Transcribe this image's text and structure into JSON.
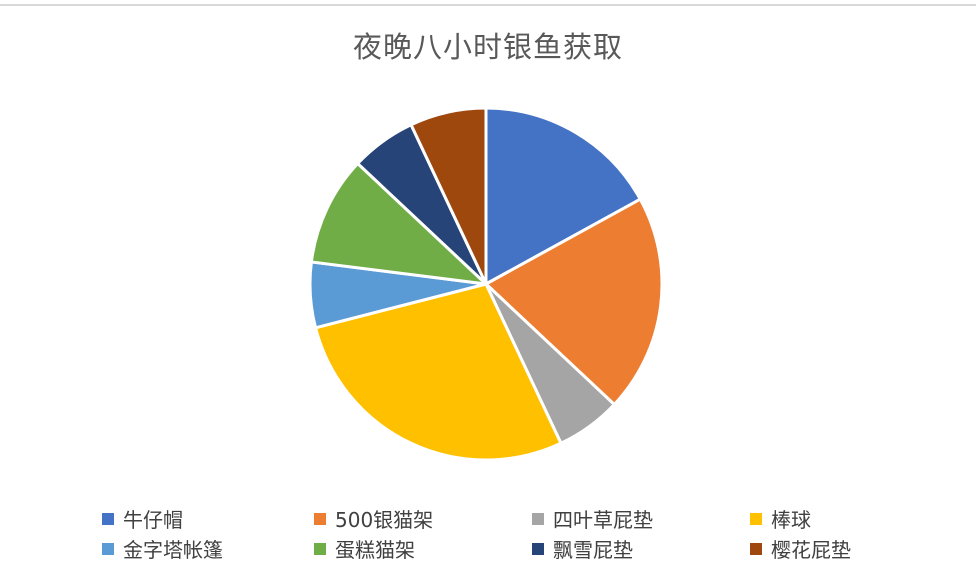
{
  "chart_data": {
    "type": "pie",
    "title": "夜晚八小时银鱼获取",
    "categories": [
      "牛仔帽",
      "500银猫架",
      "四叶草屁垫",
      "棒球",
      "金字塔帐篷",
      "蛋糕猫架",
      "飘雪屁垫",
      "樱花屁垫"
    ],
    "values": [
      17,
      20,
      6,
      28,
      6,
      10,
      6,
      7
    ],
    "colors": [
      "#4472C4",
      "#ED7D31",
      "#A5A5A5",
      "#FFC000",
      "#5B9BD5",
      "#70AD47",
      "#264478",
      "#9E480E"
    ],
    "legend_position": "bottom"
  }
}
